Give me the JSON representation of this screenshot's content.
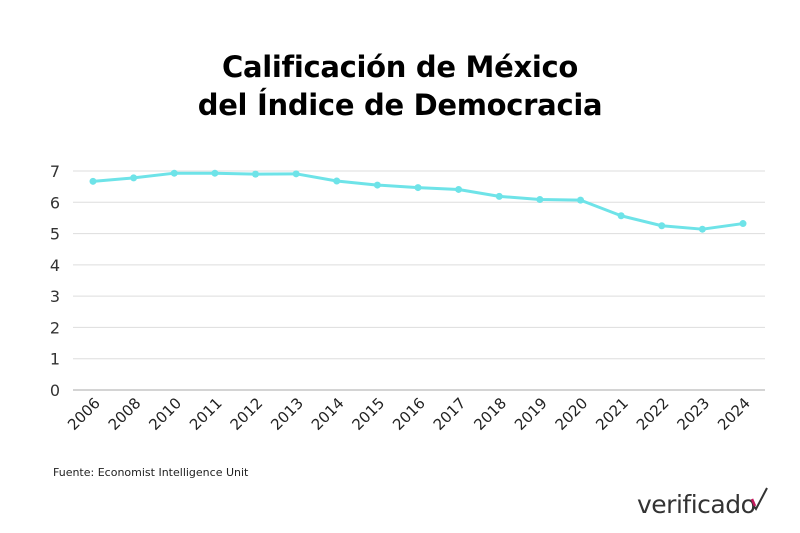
{
  "chart_data": {
    "type": "line",
    "title_lines": [
      "Calificación de México",
      "del Índice de Democracia"
    ],
    "categories": [
      "2006",
      "2008",
      "2010",
      "2011",
      "2012",
      "2013",
      "2014",
      "2015",
      "2016",
      "2017",
      "2018",
      "2019",
      "2020",
      "2021",
      "2022",
      "2023",
      "2024"
    ],
    "series": [
      {
        "values": [
          6.67,
          6.78,
          6.93,
          6.93,
          6.9,
          6.91,
          6.68,
          6.55,
          6.47,
          6.41,
          6.19,
          6.09,
          6.07,
          5.57,
          5.25,
          5.14,
          5.32
        ],
        "color": "#6ee3e8"
      }
    ],
    "yticks": [
      0,
      1,
      2,
      3,
      4,
      5,
      6,
      7
    ],
    "ylim": [
      0,
      7
    ],
    "grid": true,
    "xlabel": "",
    "ylabel": ""
  },
  "source": "Fuente: Economist Intelligence Unit",
  "logo": "verificado"
}
